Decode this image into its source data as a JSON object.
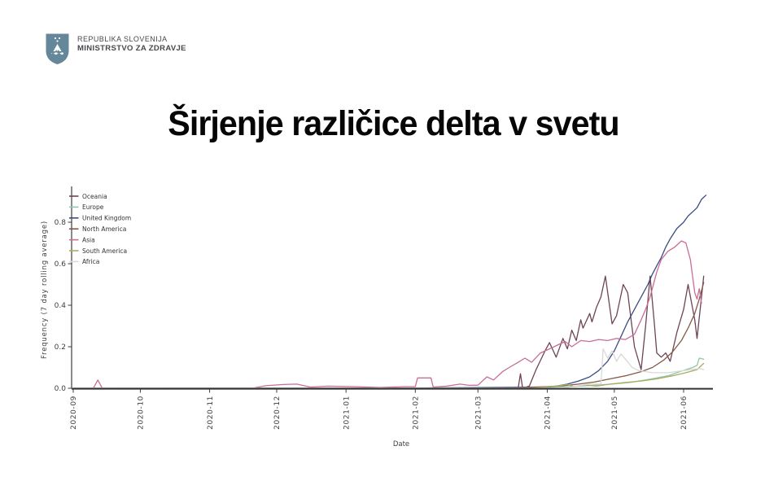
{
  "header": {
    "line1": "REPUBLIKA SLOVENIJA",
    "line2": "MINISTRSTVO ZA ZDRAVJE",
    "logo_color": "#64879a"
  },
  "title": "Širjenje različice delta v svetu",
  "chart_data": {
    "type": "line",
    "title": "",
    "xlabel": "Date",
    "ylabel": "Frequency (7 day rolling average)",
    "x_ticks": [
      "2020-09",
      "2020-10",
      "2020-11",
      "2020-12",
      "2021-01",
      "2021-02",
      "2021-03",
      "2021-04",
      "2021-05",
      "2021-06"
    ],
    "y_ticks": [
      0.0,
      0.2,
      0.4,
      0.6,
      0.8
    ],
    "ylim": [
      0,
      0.97
    ],
    "grid": false,
    "legend_position": "upper left",
    "axis_color": "#3d3d3d",
    "series": [
      {
        "name": "Oceania",
        "color": "#6e4455",
        "points": [
          [
            "2020-09-01",
            0
          ],
          [
            "2021-03-19",
            0
          ],
          [
            "2021-03-20",
            0.07
          ],
          [
            "2021-03-21",
            0
          ],
          [
            "2021-03-24",
            0.01
          ],
          [
            "2021-03-27",
            0.09
          ],
          [
            "2021-03-31",
            0.18
          ],
          [
            "2021-04-02",
            0.22
          ],
          [
            "2021-04-05",
            0.15
          ],
          [
            "2021-04-08",
            0.24
          ],
          [
            "2021-04-10",
            0.19
          ],
          [
            "2021-04-12",
            0.28
          ],
          [
            "2021-04-14",
            0.23
          ],
          [
            "2021-04-16",
            0.33
          ],
          [
            "2021-04-17",
            0.29
          ],
          [
            "2021-04-20",
            0.36
          ],
          [
            "2021-04-21",
            0.32
          ],
          [
            "2021-04-23",
            0.39
          ],
          [
            "2021-04-25",
            0.44
          ],
          [
            "2021-04-27",
            0.54
          ],
          [
            "2021-04-30",
            0.31
          ],
          [
            "2021-05-02",
            0.35
          ],
          [
            "2021-05-05",
            0.5
          ],
          [
            "2021-05-07",
            0.46
          ],
          [
            "2021-05-10",
            0.2
          ],
          [
            "2021-05-13",
            0.09
          ],
          [
            "2021-05-15",
            0.3
          ],
          [
            "2021-05-17",
            0.54
          ],
          [
            "2021-05-19",
            0.3
          ],
          [
            "2021-05-20",
            0.17
          ],
          [
            "2021-05-22",
            0.15
          ],
          [
            "2021-05-24",
            0.17
          ],
          [
            "2021-05-26",
            0.13
          ],
          [
            "2021-05-29",
            0.27
          ],
          [
            "2021-06-01",
            0.38
          ],
          [
            "2021-06-03",
            0.5
          ],
          [
            "2021-06-06",
            0.33
          ],
          [
            "2021-06-07",
            0.24
          ],
          [
            "2021-06-10",
            0.54
          ]
        ]
      },
      {
        "name": "Europe",
        "color": "#8fc6ae",
        "points": [
          [
            "2020-09-01",
            0
          ],
          [
            "2021-03-20",
            0
          ],
          [
            "2021-04-01",
            0.004
          ],
          [
            "2021-04-10",
            0.008
          ],
          [
            "2021-04-20",
            0.013
          ],
          [
            "2021-04-30",
            0.02
          ],
          [
            "2021-05-08",
            0.028
          ],
          [
            "2021-05-15",
            0.04
          ],
          [
            "2021-05-20",
            0.05
          ],
          [
            "2021-05-25",
            0.06
          ],
          [
            "2021-05-29",
            0.075
          ],
          [
            "2021-06-02",
            0.09
          ],
          [
            "2021-06-05",
            0.1
          ],
          [
            "2021-06-07",
            0.11
          ],
          [
            "2021-06-08",
            0.145
          ],
          [
            "2021-06-10",
            0.14
          ]
        ]
      },
      {
        "name": "United Kingdom",
        "color": "#3b4c82",
        "points": [
          [
            "2020-09-01",
            0
          ],
          [
            "2021-02-01",
            0.001
          ],
          [
            "2021-03-01",
            0.003
          ],
          [
            "2021-04-01",
            0.006
          ],
          [
            "2021-04-05",
            0.01
          ],
          [
            "2021-04-10",
            0.02
          ],
          [
            "2021-04-15",
            0.035
          ],
          [
            "2021-04-20",
            0.055
          ],
          [
            "2021-04-24",
            0.085
          ],
          [
            "2021-04-28",
            0.13
          ],
          [
            "2021-05-01",
            0.18
          ],
          [
            "2021-05-04",
            0.25
          ],
          [
            "2021-05-07",
            0.32
          ],
          [
            "2021-05-10",
            0.38
          ],
          [
            "2021-05-13",
            0.44
          ],
          [
            "2021-05-16",
            0.5
          ],
          [
            "2021-05-18",
            0.55
          ],
          [
            "2021-05-20",
            0.59
          ],
          [
            "2021-05-22",
            0.63
          ],
          [
            "2021-05-24",
            0.68
          ],
          [
            "2021-05-26",
            0.72
          ],
          [
            "2021-05-29",
            0.77
          ],
          [
            "2021-06-01",
            0.8
          ],
          [
            "2021-06-03",
            0.83
          ],
          [
            "2021-06-05",
            0.85
          ],
          [
            "2021-06-07",
            0.87
          ],
          [
            "2021-06-09",
            0.91
          ],
          [
            "2021-06-11",
            0.93
          ]
        ]
      },
      {
        "name": "North America",
        "color": "#855a44",
        "points": [
          [
            "2020-09-01",
            0
          ],
          [
            "2021-03-15",
            0
          ],
          [
            "2021-03-25",
            0.005
          ],
          [
            "2021-04-01",
            0.008
          ],
          [
            "2021-04-08",
            0.012
          ],
          [
            "2021-04-15",
            0.02
          ],
          [
            "2021-04-22",
            0.03
          ],
          [
            "2021-04-29",
            0.045
          ],
          [
            "2021-05-06",
            0.06
          ],
          [
            "2021-05-13",
            0.08
          ],
          [
            "2021-05-18",
            0.1
          ],
          [
            "2021-05-23",
            0.135
          ],
          [
            "2021-05-27",
            0.175
          ],
          [
            "2021-05-31",
            0.23
          ],
          [
            "2021-06-03",
            0.29
          ],
          [
            "2021-06-06",
            0.36
          ],
          [
            "2021-06-08",
            0.43
          ],
          [
            "2021-06-10",
            0.51
          ]
        ]
      },
      {
        "name": "Asia",
        "color": "#c86d97",
        "points": [
          [
            "2020-09-01",
            0
          ],
          [
            "2020-09-10",
            0
          ],
          [
            "2020-09-12",
            0.04
          ],
          [
            "2020-09-14",
            0
          ],
          [
            "2020-10-15",
            0
          ],
          [
            "2020-11-20",
            0
          ],
          [
            "2020-11-26",
            0.012
          ],
          [
            "2020-12-04",
            0.018
          ],
          [
            "2020-12-10",
            0.02
          ],
          [
            "2020-12-16",
            0.006
          ],
          [
            "2020-12-24",
            0.01
          ],
          [
            "2021-01-05",
            0.008
          ],
          [
            "2021-01-16",
            0.004
          ],
          [
            "2021-01-27",
            0.008
          ],
          [
            "2021-02-01",
            0.008
          ],
          [
            "2021-02-02",
            0.05
          ],
          [
            "2021-02-08",
            0.05
          ],
          [
            "2021-02-09",
            0.006
          ],
          [
            "2021-02-15",
            0.01
          ],
          [
            "2021-02-21",
            0.02
          ],
          [
            "2021-02-25",
            0.014
          ],
          [
            "2021-03-01",
            0.015
          ],
          [
            "2021-03-05",
            0.055
          ],
          [
            "2021-03-08",
            0.04
          ],
          [
            "2021-03-12",
            0.08
          ],
          [
            "2021-03-15",
            0.1
          ],
          [
            "2021-03-19",
            0.125
          ],
          [
            "2021-03-22",
            0.145
          ],
          [
            "2021-03-25",
            0.125
          ],
          [
            "2021-03-29",
            0.17
          ],
          [
            "2021-04-02",
            0.19
          ],
          [
            "2021-04-06",
            0.21
          ],
          [
            "2021-04-09",
            0.225
          ],
          [
            "2021-04-12",
            0.2
          ],
          [
            "2021-04-16",
            0.23
          ],
          [
            "2021-04-20",
            0.225
          ],
          [
            "2021-04-24",
            0.235
          ],
          [
            "2021-04-28",
            0.23
          ],
          [
            "2021-05-02",
            0.24
          ],
          [
            "2021-05-06",
            0.235
          ],
          [
            "2021-05-10",
            0.26
          ],
          [
            "2021-05-13",
            0.33
          ],
          [
            "2021-05-15",
            0.38
          ],
          [
            "2021-05-17",
            0.44
          ],
          [
            "2021-05-20",
            0.56
          ],
          [
            "2021-05-22",
            0.62
          ],
          [
            "2021-05-25",
            0.66
          ],
          [
            "2021-05-28",
            0.68
          ],
          [
            "2021-05-31",
            0.71
          ],
          [
            "2021-06-02",
            0.7
          ],
          [
            "2021-06-04",
            0.62
          ],
          [
            "2021-06-06",
            0.46
          ],
          [
            "2021-06-07",
            0.43
          ],
          [
            "2021-06-08",
            0.48
          ],
          [
            "2021-06-09",
            0.41
          ]
        ]
      },
      {
        "name": "South America",
        "color": "#adab5f",
        "points": [
          [
            "2020-09-01",
            0
          ],
          [
            "2021-03-25",
            0
          ],
          [
            "2021-04-05",
            0.01
          ],
          [
            "2021-04-10",
            0.018
          ],
          [
            "2021-04-13",
            0.008
          ],
          [
            "2021-04-18",
            0.016
          ],
          [
            "2021-04-23",
            0.01
          ],
          [
            "2021-04-29",
            0.02
          ],
          [
            "2021-05-06",
            0.028
          ],
          [
            "2021-05-13",
            0.035
          ],
          [
            "2021-05-20",
            0.045
          ],
          [
            "2021-05-27",
            0.06
          ],
          [
            "2021-06-02",
            0.075
          ],
          [
            "2021-06-07",
            0.09
          ],
          [
            "2021-06-10",
            0.12
          ]
        ]
      },
      {
        "name": "Africa",
        "color": "#d8d8d8",
        "points": [
          [
            "2020-09-01",
            0
          ],
          [
            "2021-04-08",
            0
          ],
          [
            "2021-04-14",
            0.01
          ],
          [
            "2021-04-20",
            0.02
          ],
          [
            "2021-04-25",
            0.02
          ],
          [
            "2021-04-26",
            0.19
          ],
          [
            "2021-04-28",
            0.145
          ],
          [
            "2021-04-30",
            0.18
          ],
          [
            "2021-05-02",
            0.13
          ],
          [
            "2021-05-04",
            0.165
          ],
          [
            "2021-05-06",
            0.14
          ],
          [
            "2021-05-09",
            0.1
          ],
          [
            "2021-05-12",
            0.085
          ],
          [
            "2021-05-18",
            0.075
          ],
          [
            "2021-05-25",
            0.075
          ],
          [
            "2021-06-01",
            0.085
          ],
          [
            "2021-06-08",
            0.095
          ],
          [
            "2021-06-10",
            0.09
          ]
        ]
      }
    ]
  }
}
